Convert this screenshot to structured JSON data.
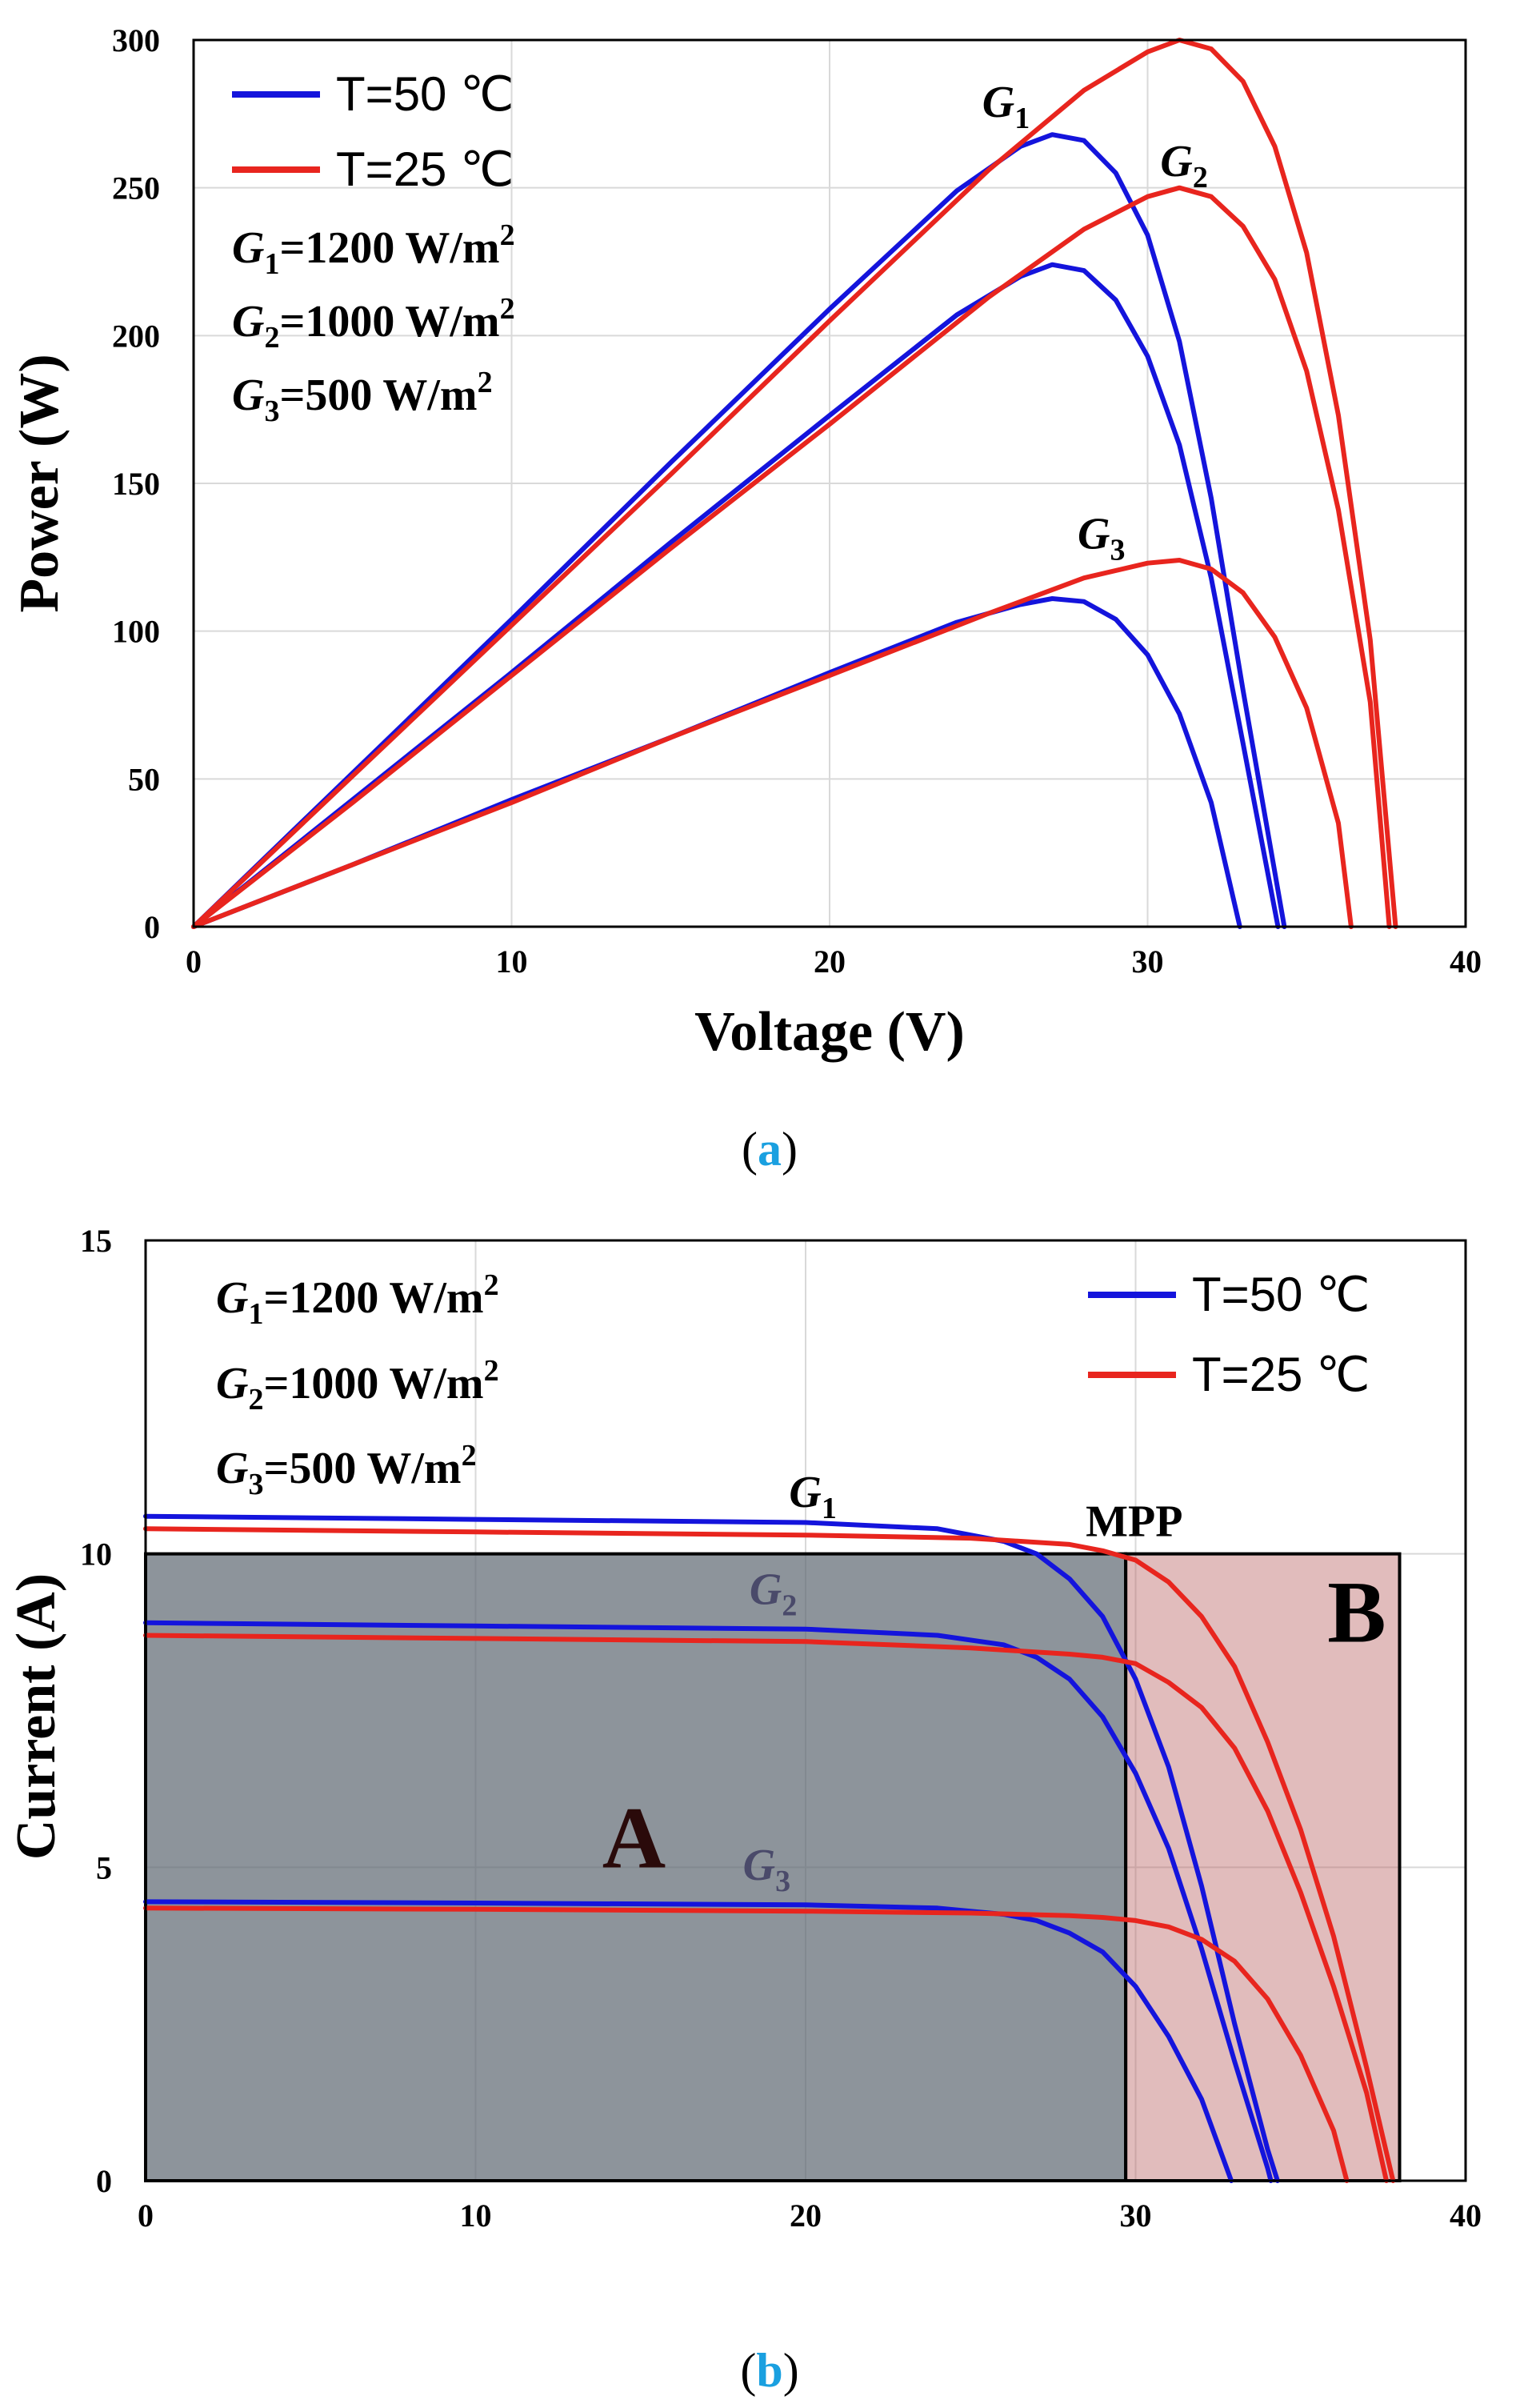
{
  "chart_data": [
    {
      "type": "line",
      "panel": "a",
      "caption_letter": "a",
      "xlabel": "Voltage (V)",
      "ylabel": "Power (W)",
      "xlim": [
        0,
        40
      ],
      "ylim": [
        0,
        300
      ],
      "xticks": [
        "0",
        "10",
        "20",
        "30",
        "40"
      ],
      "yticks": [
        "0",
        "50",
        "100",
        "150",
        "200",
        "250",
        "300"
      ],
      "grid": true,
      "legend": [
        {
          "label": "T=50 ℃",
          "color": "#1414dc"
        },
        {
          "label": "T=25 ℃",
          "color": "#e8251e"
        }
      ],
      "irradiance_labels": [
        {
          "sym": "G",
          "sub": "1",
          "text": "=1200 W/m",
          "sup": "2"
        },
        {
          "sym": "G",
          "sub": "2",
          "text": "=1000 W/m",
          "sup": "2"
        },
        {
          "sym": "G",
          "sub": "3",
          "text": "=500 W/m",
          "sup": "2"
        }
      ],
      "curve_labels": [
        {
          "sym": "G",
          "sub": "1",
          "x": 24.8,
          "y": 274
        },
        {
          "sym": "G",
          "sub": "2",
          "x": 30.4,
          "y": 254
        },
        {
          "sym": "G",
          "sub": "3",
          "x": 27.8,
          "y": 128
        }
      ],
      "series": [
        {
          "name": "G1 T=50",
          "color": "#1414dc",
          "x": [
            0,
            5,
            10,
            15,
            20,
            24,
            26,
            27,
            28,
            29,
            30,
            31,
            32,
            33,
            34.3
          ],
          "y": [
            0,
            52,
            104,
            157,
            209,
            249,
            264,
            268,
            266,
            255,
            234,
            198,
            145,
            80,
            0
          ]
        },
        {
          "name": "G2 T=50",
          "color": "#1414dc",
          "x": [
            0,
            5,
            10,
            15,
            20,
            24,
            26,
            27,
            28,
            29,
            30,
            31,
            32,
            33,
            34.1
          ],
          "y": [
            0,
            43,
            86,
            130,
            173,
            207,
            220,
            224,
            222,
            212,
            193,
            163,
            118,
            62,
            0
          ]
        },
        {
          "name": "G3 T=50",
          "color": "#1414dc",
          "x": [
            0,
            5,
            10,
            15,
            20,
            24,
            26,
            27,
            28,
            29,
            30,
            31,
            32,
            32.9
          ],
          "y": [
            0,
            21,
            43,
            64,
            86,
            103,
            109,
            111,
            110,
            104,
            92,
            72,
            42,
            0
          ]
        },
        {
          "name": "G1 T=25",
          "color": "#e8251e",
          "x": [
            0,
            5,
            10,
            15,
            20,
            25,
            28,
            30,
            31,
            32,
            33,
            34,
            35,
            36,
            37,
            37.8
          ],
          "y": [
            0,
            51,
            102,
            153,
            205,
            256,
            283,
            296,
            300,
            297,
            286,
            264,
            228,
            173,
            97,
            0
          ]
        },
        {
          "name": "G2 T=25",
          "color": "#e8251e",
          "x": [
            0,
            5,
            10,
            15,
            20,
            25,
            28,
            30,
            31,
            32,
            33,
            34,
            35,
            36,
            37,
            37.6
          ],
          "y": [
            0,
            42,
            85,
            128,
            170,
            213,
            236,
            247,
            250,
            247,
            237,
            219,
            188,
            141,
            76,
            0
          ]
        },
        {
          "name": "G3 T=25",
          "color": "#e8251e",
          "x": [
            0,
            5,
            10,
            15,
            20,
            25,
            28,
            30,
            31,
            32,
            33,
            34,
            35,
            36,
            36.4
          ],
          "y": [
            0,
            21,
            42,
            64,
            85,
            106,
            118,
            123,
            124,
            121,
            113,
            98,
            74,
            35,
            0
          ]
        }
      ]
    },
    {
      "type": "line",
      "panel": "b",
      "caption_letter": "b",
      "xlabel": "",
      "ylabel": "Current (A)",
      "xlim": [
        0,
        40
      ],
      "ylim": [
        0,
        15
      ],
      "xticks": [
        "0",
        "10",
        "20",
        "30",
        "40"
      ],
      "yticks": [
        "0",
        "5",
        "10",
        "15"
      ],
      "grid": true,
      "legend": [
        {
          "label": "T=50 ℃",
          "color": "#1414dc"
        },
        {
          "label": "T=25 ℃",
          "color": "#e8251e"
        }
      ],
      "irradiance_labels": [
        {
          "sym": "G",
          "sub": "1",
          "text": "=1200 W/m",
          "sup": "2"
        },
        {
          "sym": "G",
          "sub": "2",
          "text": "=1000 W/m",
          "sup": "2"
        },
        {
          "sym": "G",
          "sub": "3",
          "text": "=500 W/m",
          "sup": "2"
        }
      ],
      "curve_labels": [
        {
          "sym": "G",
          "sub": "1",
          "x": 19.5,
          "y": 10.75,
          "color": "#000000"
        },
        {
          "sym": "G",
          "sub": "2",
          "x": 18.3,
          "y": 9.2,
          "color": "#4a4a6a"
        },
        {
          "sym": "G",
          "sub": "3",
          "x": 18.1,
          "y": 4.8,
          "color": "#4a4a6a"
        }
      ],
      "annotation": {
        "text": "MPP",
        "x": 29.7,
        "y": 10
      },
      "regions": [
        {
          "label": "A",
          "x0": 0,
          "x1": 29.7,
          "y0": 0,
          "y1": 10,
          "fill": "#5d6770",
          "opacity": 0.7,
          "label_x": 14.8,
          "label_y": 5,
          "label_color": "#2a0a0a"
        },
        {
          "label": "B",
          "x0": 29.7,
          "x1": 38,
          "y0": 0,
          "y1": 10,
          "fill": "#b86060",
          "opacity": 0.42,
          "label_x": 36.7,
          "label_y": 8.6,
          "label_color": "#000000"
        }
      ],
      "series": [
        {
          "name": "G1 T=50",
          "color": "#1414dc",
          "x": [
            0,
            10,
            20,
            24,
            26,
            27,
            28,
            29,
            30,
            31,
            32,
            33,
            34,
            34.3
          ],
          "y": [
            10.6,
            10.55,
            10.5,
            10.4,
            10.2,
            10.0,
            9.6,
            9.0,
            8.0,
            6.6,
            4.7,
            2.5,
            0.5,
            0
          ]
        },
        {
          "name": "G2 T=50",
          "color": "#1414dc",
          "x": [
            0,
            10,
            20,
            24,
            26,
            27,
            28,
            29,
            30,
            31,
            32,
            33,
            34,
            34.1
          ],
          "y": [
            8.9,
            8.85,
            8.8,
            8.7,
            8.55,
            8.35,
            8.0,
            7.4,
            6.5,
            5.3,
            3.7,
            1.9,
            0.2,
            0
          ]
        },
        {
          "name": "G3 T=50",
          "color": "#1414dc",
          "x": [
            0,
            10,
            20,
            24,
            26,
            27,
            28,
            29,
            30,
            31,
            32,
            32.9
          ],
          "y": [
            4.45,
            4.43,
            4.4,
            4.35,
            4.25,
            4.15,
            3.95,
            3.65,
            3.1,
            2.3,
            1.3,
            0
          ]
        },
        {
          "name": "G1 T=25",
          "color": "#e8251e",
          "x": [
            0,
            10,
            20,
            25,
            28,
            29,
            30,
            31,
            32,
            33,
            34,
            35,
            36,
            37,
            37.8
          ],
          "y": [
            10.4,
            10.35,
            10.3,
            10.25,
            10.15,
            10.05,
            9.9,
            9.55,
            9.0,
            8.2,
            7.0,
            5.6,
            3.9,
            1.8,
            0
          ]
        },
        {
          "name": "G2 T=25",
          "color": "#e8251e",
          "x": [
            0,
            10,
            20,
            25,
            28,
            29,
            30,
            31,
            32,
            33,
            34,
            35,
            36,
            37,
            37.6
          ],
          "y": [
            8.7,
            8.65,
            8.6,
            8.5,
            8.4,
            8.35,
            8.25,
            7.95,
            7.55,
            6.9,
            5.9,
            4.6,
            3.1,
            1.4,
            0
          ]
        },
        {
          "name": "G3 T=25",
          "color": "#e8251e",
          "x": [
            0,
            10,
            20,
            25,
            28,
            29,
            30,
            31,
            32,
            33,
            34,
            35,
            36,
            36.4
          ],
          "y": [
            4.35,
            4.33,
            4.3,
            4.27,
            4.23,
            4.2,
            4.15,
            4.05,
            3.85,
            3.5,
            2.9,
            2.0,
            0.8,
            0
          ]
        }
      ]
    }
  ]
}
